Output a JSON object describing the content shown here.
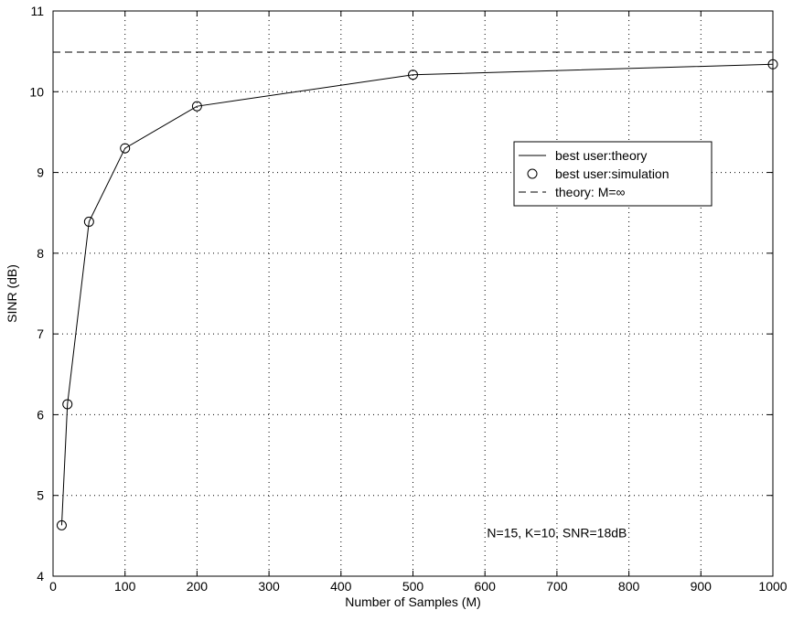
{
  "chart_data": {
    "type": "line",
    "title": "",
    "xlabel": "Number of Samples (M)",
    "ylabel": "SINR (dB)",
    "xlim": [
      0,
      1000
    ],
    "ylim": [
      4,
      11
    ],
    "xticks": [
      0,
      100,
      200,
      300,
      400,
      500,
      600,
      700,
      800,
      900,
      1000
    ],
    "yticks": [
      4,
      5,
      6,
      7,
      8,
      9,
      10,
      11
    ],
    "grid": true,
    "grid_style": "dotted",
    "legend_position": "right-center",
    "series": [
      {
        "name": "best user:theory",
        "style": "solid-line",
        "color": "#000000",
        "x": [
          12,
          20,
          50,
          100,
          200,
          500,
          1000
        ],
        "y": [
          4.63,
          6.13,
          8.39,
          9.3,
          9.82,
          10.21,
          10.34
        ]
      },
      {
        "name": "best user:simulation",
        "style": "circle-markers",
        "color": "#000000",
        "x": [
          12,
          20,
          50,
          100,
          200,
          500,
          1000
        ],
        "y": [
          4.63,
          6.13,
          8.39,
          9.3,
          9.82,
          10.21,
          10.34
        ]
      },
      {
        "name": "theory: M=∞",
        "style": "dashed-line",
        "color": "#000000",
        "x": [
          0,
          1000
        ],
        "y": [
          10.49,
          10.49
        ]
      }
    ],
    "annotations": [
      {
        "text": "N=15, K=10, SNR=18dB",
        "x": 700,
        "y": 4.48
      }
    ]
  }
}
